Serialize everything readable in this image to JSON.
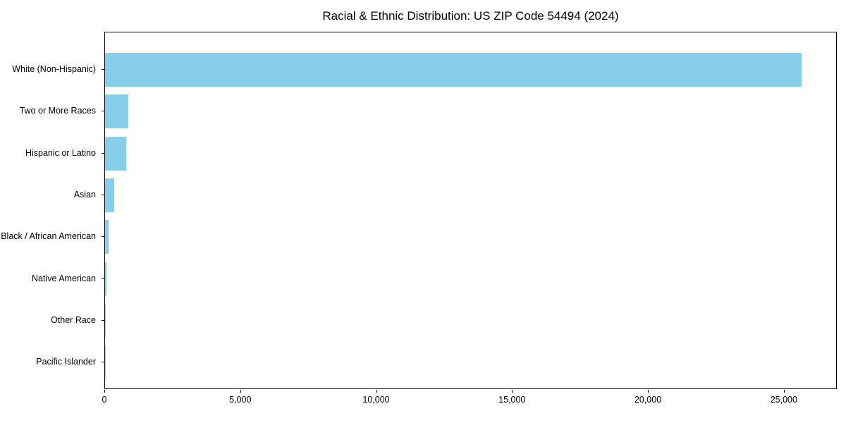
{
  "chart_data": {
    "type": "bar",
    "orientation": "horizontal",
    "title": "Racial & Ethnic Distribution: US ZIP Code 54494 (2024)",
    "categories": [
      "White (Non-Hispanic)",
      "Two or More Races",
      "Hispanic or Latino",
      "Asian",
      "Black / African American",
      "Native American",
      "Other Race",
      "Pacific Islander"
    ],
    "values": [
      25620,
      850,
      780,
      340,
      140,
      40,
      20,
      10
    ],
    "xlabel": "",
    "ylabel": "",
    "xlim": [
      0,
      26950
    ],
    "xticks": [
      0,
      5000,
      10000,
      15000,
      20000,
      25000
    ],
    "xtick_labels": [
      "0",
      "5,000",
      "10,000",
      "15,000",
      "20,000",
      "25,000"
    ],
    "bar_color": "#87CEEB",
    "axis_color": "#000000",
    "grid": false,
    "legend": null
  }
}
